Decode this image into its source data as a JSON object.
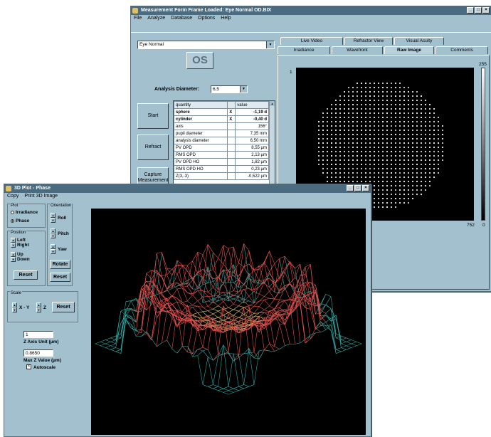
{
  "measurement_window": {
    "title": "Measurement Form  Frame Loaded: Eye Normal OD.BIX",
    "menu": [
      "File",
      "Analyze",
      "Database",
      "Options",
      "Help"
    ],
    "eye_select": "Eye Normal",
    "eye_side": "OS",
    "analysis_diameter_label": "Analysis Diameter:",
    "analysis_diameter_value": "6,5",
    "buttons": {
      "start": "Start",
      "refract": "Refract",
      "capture": "Capture Measurement"
    },
    "tabs_row1": [
      "Live Video",
      "Refractor View",
      "Visual Acuity"
    ],
    "tabs_row2": [
      "Irradiance",
      "Wavefront",
      "Raw Image",
      "Comments"
    ],
    "active_tab": "Raw Image",
    "table": {
      "headers": [
        "quantity",
        "value"
      ],
      "rows": [
        {
          "q": "sphere",
          "mark": "X",
          "v": "-1,19 d",
          "bold": true
        },
        {
          "q": "cylinder",
          "mark": "X",
          "v": "-0,40 d",
          "bold": true
        },
        {
          "q": "axis",
          "mark": "",
          "v": "156°",
          "bold": false
        },
        {
          "q": "pupil diameter",
          "mark": "",
          "v": "7,35 mm",
          "bold": false
        },
        {
          "q": "analysis diameter",
          "mark": "",
          "v": "6,50 mm",
          "bold": false
        },
        {
          "q": "PV OPD",
          "mark": "",
          "v": "8,55 µm",
          "bold": false
        },
        {
          "q": "RMS OPD",
          "mark": "",
          "v": "2,13 µm",
          "bold": false
        },
        {
          "q": "PV OPD HO",
          "mark": "",
          "v": "1,82 µm",
          "bold": false
        },
        {
          "q": "RMS OPD HO",
          "mark": "",
          "v": "0,23 µm",
          "bold": false
        },
        {
          "q": "Z(3,-3)",
          "mark": "",
          "v": "-0,522 µm",
          "bold": false
        }
      ]
    },
    "image_axis": {
      "top_left": "1",
      "top_right": "255",
      "bottom_right": "752",
      "bottom_right2": "0"
    }
  },
  "plot_window": {
    "title": "3D Plot - Phase",
    "menu": [
      "Copy",
      "Print 3D Image"
    ],
    "plot_group": {
      "label": "Plot",
      "options": [
        "Irradiance",
        "Phase"
      ],
      "selected": "Phase"
    },
    "orientation_group": {
      "label": "Orientation",
      "items": [
        "Roll",
        "Pitch",
        "Yaw"
      ],
      "rotate": "Rotate",
      "reset": "Reset"
    },
    "position_group": {
      "label": "Position",
      "items": [
        "Left",
        "Right",
        "Up",
        "Down"
      ],
      "reset": "Reset"
    },
    "scale_group": {
      "label": "Scale",
      "xy_label": "X - Y",
      "z_label": "Z",
      "reset": "Reset"
    },
    "z_axis_unit_value": "1",
    "z_axis_unit_label": "Z Axis Unit (µm)",
    "max_z_value": "0.8650",
    "max_z_label": "Max Z Value (µm)",
    "autoscale_label": "Autoscale",
    "autoscale_checked": true
  }
}
